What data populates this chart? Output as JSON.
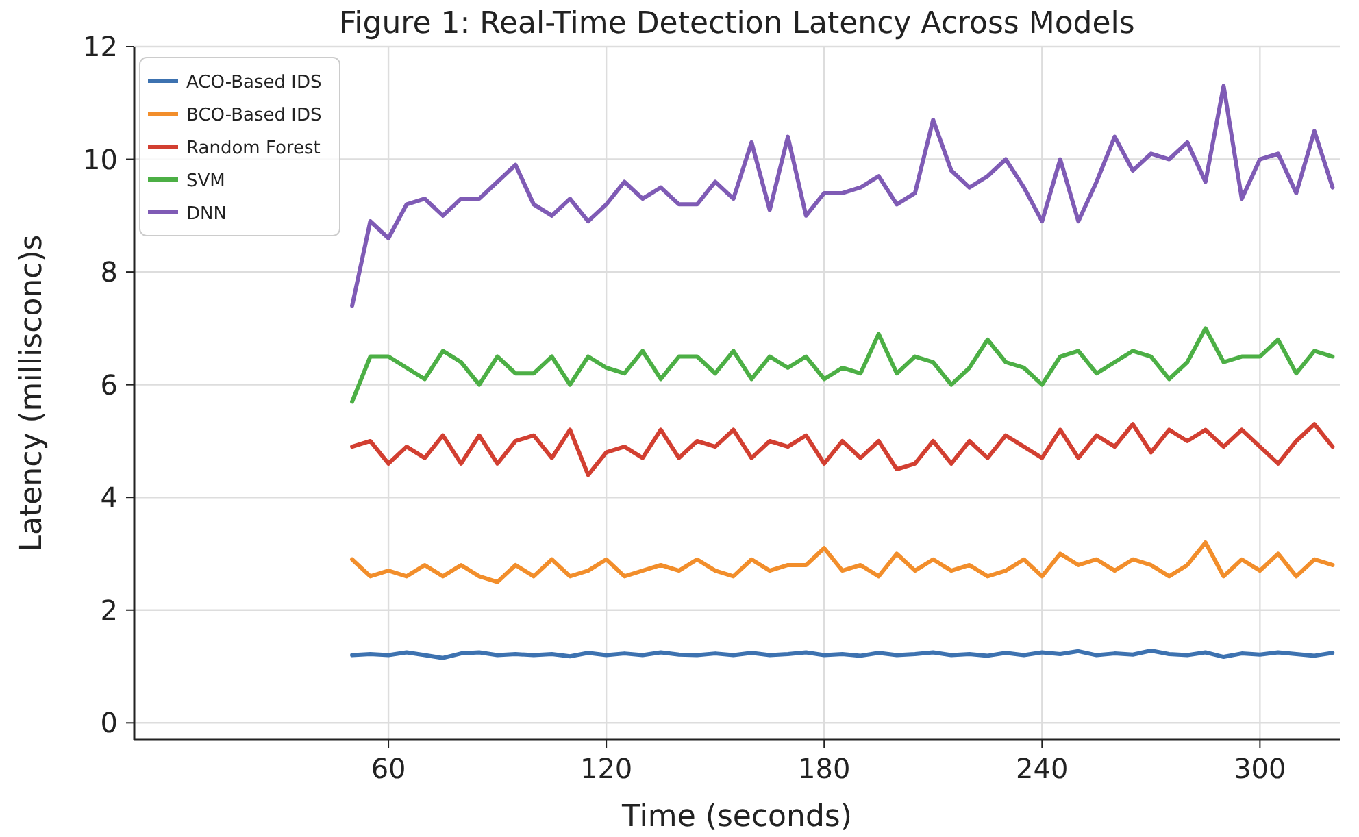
{
  "chart_data": {
    "type": "line",
    "title": "Figure 1: Real-Time Detection Latency Across Models",
    "xlabel": "Time (seconds)",
    "ylabel": "Latency (millisconc)s",
    "x": [
      50,
      55,
      60,
      65,
      70,
      75,
      80,
      85,
      90,
      95,
      100,
      105,
      110,
      115,
      120,
      125,
      130,
      135,
      140,
      145,
      150,
      155,
      160,
      165,
      170,
      175,
      180,
      185,
      190,
      195,
      200,
      205,
      210,
      215,
      220,
      225,
      230,
      235,
      240,
      245,
      250,
      255,
      260,
      265,
      270,
      275,
      280,
      285,
      290,
      295,
      300,
      305,
      310,
      315,
      320
    ],
    "series": [
      {
        "name": "ACO-Based IDS",
        "color": "#3d72b0",
        "values": [
          1.2,
          1.22,
          1.2,
          1.25,
          1.2,
          1.15,
          1.23,
          1.25,
          1.2,
          1.22,
          1.2,
          1.22,
          1.18,
          1.24,
          1.2,
          1.23,
          1.2,
          1.25,
          1.21,
          1.2,
          1.23,
          1.2,
          1.24,
          1.2,
          1.22,
          1.25,
          1.2,
          1.22,
          1.19,
          1.24,
          1.2,
          1.22,
          1.25,
          1.2,
          1.22,
          1.19,
          1.24,
          1.2,
          1.25,
          1.22,
          1.27,
          1.2,
          1.23,
          1.21,
          1.28,
          1.22,
          1.2,
          1.25,
          1.17,
          1.23,
          1.21,
          1.25,
          1.22,
          1.19,
          1.24
        ]
      },
      {
        "name": "BCO-Based IDS",
        "color": "#f28e2b",
        "values": [
          2.9,
          2.6,
          2.7,
          2.6,
          2.8,
          2.6,
          2.8,
          2.6,
          2.5,
          2.8,
          2.6,
          2.9,
          2.6,
          2.7,
          2.9,
          2.6,
          2.7,
          2.8,
          2.7,
          2.9,
          2.7,
          2.6,
          2.9,
          2.7,
          2.8,
          2.8,
          3.1,
          2.7,
          2.8,
          2.6,
          3.0,
          2.7,
          2.9,
          2.7,
          2.8,
          2.6,
          2.7,
          2.9,
          2.6,
          3.0,
          2.8,
          2.9,
          2.7,
          2.9,
          2.8,
          2.6,
          2.8,
          3.2,
          2.6,
          2.9,
          2.7,
          3.0,
          2.6,
          2.9,
          2.8
        ]
      },
      {
        "name": "Random Forest",
        "color": "#d23f31",
        "values": [
          4.9,
          5.0,
          4.6,
          4.9,
          4.7,
          5.1,
          4.6,
          5.1,
          4.6,
          5.0,
          5.1,
          4.7,
          5.2,
          4.4,
          4.8,
          4.9,
          4.7,
          5.2,
          4.7,
          5.0,
          4.9,
          5.2,
          4.7,
          5.0,
          4.9,
          5.1,
          4.6,
          5.0,
          4.7,
          5.0,
          4.5,
          4.6,
          5.0,
          4.6,
          5.0,
          4.7,
          5.1,
          4.9,
          4.7,
          5.2,
          4.7,
          5.1,
          4.9,
          5.3,
          4.8,
          5.2,
          5.0,
          5.2,
          4.9,
          5.2,
          4.9,
          4.6,
          5.0,
          5.3,
          4.9
        ]
      },
      {
        "name": "SVM",
        "color": "#4caf45",
        "values": [
          5.7,
          6.5,
          6.5,
          6.3,
          6.1,
          6.6,
          6.4,
          6.0,
          6.5,
          6.2,
          6.2,
          6.5,
          6.0,
          6.5,
          6.3,
          6.2,
          6.6,
          6.1,
          6.5,
          6.5,
          6.2,
          6.6,
          6.1,
          6.5,
          6.3,
          6.5,
          6.1,
          6.3,
          6.2,
          6.9,
          6.2,
          6.5,
          6.4,
          6.0,
          6.3,
          6.8,
          6.4,
          6.3,
          6.0,
          6.5,
          6.6,
          6.2,
          6.4,
          6.6,
          6.5,
          6.1,
          6.4,
          7.0,
          6.4,
          6.5,
          6.5,
          6.8,
          6.2,
          6.6,
          6.5
        ]
      },
      {
        "name": "DNN",
        "color": "#7f5bb5",
        "values": [
          7.4,
          8.9,
          8.6,
          9.2,
          9.3,
          9.0,
          9.3,
          9.3,
          9.6,
          9.9,
          9.2,
          9.0,
          9.3,
          8.9,
          9.2,
          9.6,
          9.3,
          9.5,
          9.2,
          9.2,
          9.6,
          9.3,
          10.3,
          9.1,
          10.4,
          9.0,
          9.4,
          9.4,
          9.5,
          9.7,
          9.2,
          9.4,
          10.7,
          9.8,
          9.5,
          9.7,
          10.0,
          9.5,
          8.9,
          10.0,
          8.9,
          9.6,
          10.4,
          9.8,
          10.1,
          10.0,
          10.3,
          9.6,
          11.3,
          9.3,
          10.0,
          10.1,
          9.4,
          10.5,
          9.5
        ]
      }
    ],
    "xlim": [
      -10,
      322
    ],
    "xticks": [
      60,
      120,
      180,
      240,
      300
    ],
    "ylim": [
      -0.3,
      12
    ],
    "yticks": [
      0,
      2,
      4,
      6,
      8,
      10,
      12
    ],
    "grid": true,
    "legend": "top left"
  }
}
